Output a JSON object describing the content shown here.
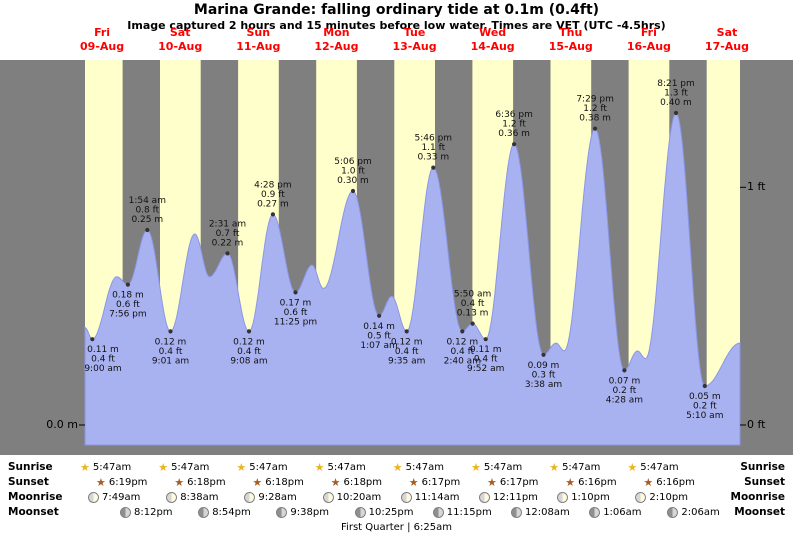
{
  "chart_data": {
    "type": "area",
    "title": "Marina Grande: falling  ordinary tide at 0.1m (0.4ft)",
    "subtitle": "Image captured 2 hours and 15 minutes before low water. Times are VET (UTC -4.5hrs)",
    "time_range_hours": [
      6.75,
      208.0
    ],
    "daylight_hours": [
      5.78,
      18.3
    ],
    "left_axis_label": "0.0 m",
    "right_axis": [
      {
        "label": "1 ft",
        "value_ft": 1
      },
      {
        "label": "0 ft",
        "value_ft": 0
      }
    ],
    "days": [
      {
        "name": "Fri",
        "date": "09-Aug"
      },
      {
        "name": "Sat",
        "date": "10-Aug"
      },
      {
        "name": "Sun",
        "date": "11-Aug"
      },
      {
        "name": "Mon",
        "date": "12-Aug"
      },
      {
        "name": "Tue",
        "date": "13-Aug"
      },
      {
        "name": "Wed",
        "date": "14-Aug"
      },
      {
        "name": "Thu",
        "date": "15-Aug"
      },
      {
        "name": "Fri",
        "date": "16-Aug"
      },
      {
        "name": "Sat",
        "date": "17-Aug"
      }
    ],
    "tide_events": [
      {
        "t": 9.0,
        "m": 0.11,
        "type": "low",
        "time": "9:00 am",
        "height_ft": "0.4 ft",
        "height_m": "0.11 m"
      },
      {
        "t": 19.93,
        "m": 0.18,
        "type": "low",
        "time": "7:56 pm",
        "height_ft": "0.6 ft",
        "height_m": "0.18 m"
      },
      {
        "t": 25.9,
        "m": 0.25,
        "type": "high",
        "time": "1:54 am",
        "height_ft": "0.8 ft",
        "height_m": "0.25 m"
      },
      {
        "t": 33.02,
        "m": 0.12,
        "type": "low",
        "time": "9:01 am",
        "height_ft": "0.4 ft",
        "height_m": "0.12 m"
      },
      {
        "t": 50.52,
        "m": 0.22,
        "type": "high",
        "time": "2:31 am",
        "height_ft": "0.7 ft",
        "height_m": "0.22 m"
      },
      {
        "t": 57.13,
        "m": 0.12,
        "type": "low",
        "time": "9:08 am",
        "height_ft": "0.4 ft",
        "height_m": "0.12 m"
      },
      {
        "t": 64.47,
        "m": 0.27,
        "type": "high",
        "time": "4:28 pm",
        "height_ft": "0.9 ft",
        "height_m": "0.27 m"
      },
      {
        "t": 71.42,
        "m": 0.17,
        "type": "low",
        "time": "11:25 pm",
        "height_ft": "0.6 ft",
        "height_m": "0.17 m"
      },
      {
        "t": 89.1,
        "m": 0.3,
        "type": "high",
        "time": "5:06 pm",
        "height_ft": "1.0 ft",
        "height_m": "0.30 m"
      },
      {
        "t": 97.12,
        "m": 0.14,
        "type": "low",
        "time": "1:07 am",
        "height_ft": "0.5 ft",
        "height_m": "0.14 m"
      },
      {
        "t": 105.58,
        "m": 0.12,
        "type": "low",
        "time": "9:35 am",
        "height_ft": "0.4 ft",
        "height_m": "0.12 m"
      },
      {
        "t": 113.77,
        "m": 0.33,
        "type": "high",
        "time": "5:46 pm",
        "height_ft": "1.1 ft",
        "height_m": "0.33 m"
      },
      {
        "t": 122.67,
        "m": 0.12,
        "type": "low",
        "time": "2:40 am",
        "height_ft": "0.4 ft",
        "height_m": "0.12 m"
      },
      {
        "t": 125.83,
        "m": 0.13,
        "type": "high",
        "time": "5:50 am",
        "height_ft": "0.4 ft",
        "height_m": "0.13 m"
      },
      {
        "t": 129.87,
        "m": 0.11,
        "type": "low",
        "time": "9:52 am",
        "height_ft": "0.4 ft",
        "height_m": "0.11 m"
      },
      {
        "t": 138.6,
        "m": 0.36,
        "type": "high",
        "time": "6:36 pm",
        "height_ft": "1.2 ft",
        "height_m": "0.36 m"
      },
      {
        "t": 147.63,
        "m": 0.09,
        "type": "low",
        "time": "3:38 am",
        "height_ft": "0.3 ft",
        "height_m": "0.09 m"
      },
      {
        "t": 163.48,
        "m": 0.38,
        "type": "high",
        "time": "7:29 pm",
        "height_ft": "1.2 ft",
        "height_m": "0.38 m"
      },
      {
        "t": 172.47,
        "m": 0.07,
        "type": "low",
        "time": "4:28 am",
        "height_ft": "0.2 ft",
        "height_m": "0.07 m"
      },
      {
        "t": 188.35,
        "m": 0.4,
        "type": "high",
        "time": "8:21 pm",
        "height_ft": "1.3 ft",
        "height_m": "0.40 m"
      },
      {
        "t": 197.17,
        "m": 0.05,
        "type": "low",
        "time": "5:10 am",
        "height_ft": "0.2 ft",
        "height_m": "0.05 m"
      }
    ],
    "curve_extremes": [
      [
        6.75,
        0.125
      ],
      [
        9.0,
        0.11
      ],
      [
        16.5,
        0.19
      ],
      [
        19.93,
        0.18
      ],
      [
        25.9,
        0.25
      ],
      [
        33.02,
        0.12
      ],
      [
        40.5,
        0.245
      ],
      [
        45.0,
        0.19
      ],
      [
        50.52,
        0.22
      ],
      [
        57.13,
        0.12
      ],
      [
        64.47,
        0.27
      ],
      [
        71.42,
        0.17
      ],
      [
        76.5,
        0.205
      ],
      [
        80.0,
        0.175
      ],
      [
        89.1,
        0.3
      ],
      [
        97.12,
        0.14
      ],
      [
        101.0,
        0.165
      ],
      [
        105.58,
        0.12
      ],
      [
        113.77,
        0.33
      ],
      [
        122.67,
        0.12
      ],
      [
        125.83,
        0.13
      ],
      [
        129.87,
        0.11
      ],
      [
        138.6,
        0.36
      ],
      [
        147.63,
        0.09
      ],
      [
        151.5,
        0.105
      ],
      [
        154.0,
        0.095
      ],
      [
        163.48,
        0.38
      ],
      [
        172.47,
        0.07
      ],
      [
        176.5,
        0.095
      ],
      [
        179.0,
        0.085
      ],
      [
        188.35,
        0.4
      ],
      [
        197.17,
        0.05
      ],
      [
        208.0,
        0.105
      ]
    ],
    "colors": {
      "day_band": "#ffffcc",
      "night_band": "#7f7f7f",
      "curve_fill": "#a9b2f0",
      "curve_edge": "#8a96e8",
      "day_label": "#ff0000",
      "dot": "#333333"
    }
  },
  "astro": {
    "rows": [
      {
        "label": "Sunrise",
        "icon": "sunrise-star-icon",
        "times": [
          "5:47am",
          "5:47am",
          "5:47am",
          "5:47am",
          "5:47am",
          "5:47am",
          "5:47am",
          "5:47am"
        ]
      },
      {
        "label": "Sunset",
        "icon": "sunset-star-icon",
        "times": [
          "6:19pm",
          "6:18pm",
          "6:18pm",
          "6:18pm",
          "6:17pm",
          "6:17pm",
          "6:16pm",
          "6:16pm"
        ]
      },
      {
        "label": "Moonrise",
        "icon": "moonrise-moon-icon",
        "times": [
          "7:49am",
          "8:38am",
          "9:28am",
          "10:20am",
          "11:14am",
          "12:11pm",
          "1:10pm",
          "2:10pm"
        ]
      },
      {
        "label": "Moonset",
        "icon": "moonset-moon-icon",
        "times": [
          "8:12pm",
          "8:54pm",
          "9:38pm",
          "10:25pm",
          "11:15pm",
          "12:08am",
          "1:06am",
          "2:06am"
        ]
      }
    ],
    "footer": "First Quarter | 6:25am"
  }
}
